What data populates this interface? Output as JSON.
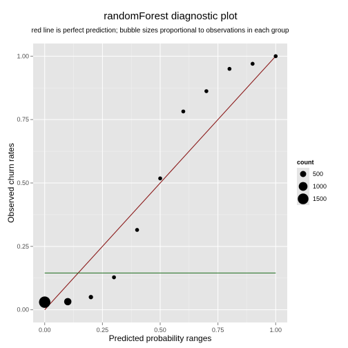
{
  "chart_data": {
    "type": "scatter",
    "title": "randomForest diagnostic plot",
    "subtitle": "red line is perfect prediction; bubble sizes proportional to observations in each group",
    "xlabel": "Predicted probability ranges",
    "ylabel": "Observed churn rates",
    "xlim": [
      -0.05,
      1.05
    ],
    "ylim": [
      -0.05,
      1.05
    ],
    "x_ticks": [
      "0.00",
      "0.25",
      "0.50",
      "0.75",
      "1.00"
    ],
    "y_ticks": [
      "0.00",
      "0.25",
      "0.50",
      "0.75",
      "1.00"
    ],
    "points": [
      {
        "x": 0.0,
        "y": 0.03,
        "count": 1700
      },
      {
        "x": 0.1,
        "y": 0.032,
        "count": 700
      },
      {
        "x": 0.2,
        "y": 0.05,
        "count": 250
      },
      {
        "x": 0.3,
        "y": 0.128,
        "count": 200
      },
      {
        "x": 0.4,
        "y": 0.315,
        "count": 200
      },
      {
        "x": 0.5,
        "y": 0.518,
        "count": 200
      },
      {
        "x": 0.6,
        "y": 0.782,
        "count": 200
      },
      {
        "x": 0.7,
        "y": 0.862,
        "count": 200
      },
      {
        "x": 0.8,
        "y": 0.95,
        "count": 200
      },
      {
        "x": 0.9,
        "y": 0.97,
        "count": 200
      },
      {
        "x": 1.0,
        "y": 1.0,
        "count": 200
      }
    ],
    "reference_lines": [
      {
        "kind": "diagonal",
        "from": [
          0,
          0
        ],
        "to": [
          1,
          1
        ],
        "color": "#8b1a1a"
      },
      {
        "kind": "horizontal",
        "y": 0.145,
        "from_x": 0,
        "to_x": 1,
        "color": "#1a6b1a"
      }
    ],
    "legend": {
      "title": "count",
      "position": "right",
      "entries": [
        {
          "label": "500",
          "count": 500
        },
        {
          "label": "1000",
          "count": 1000
        },
        {
          "label": "1500",
          "count": 1500
        }
      ]
    },
    "grid": true,
    "colors": {
      "panel": "#e5e5e5",
      "grid_major": "#ffffff",
      "grid_minor": "#f2f2f2",
      "points": "#000000"
    }
  }
}
